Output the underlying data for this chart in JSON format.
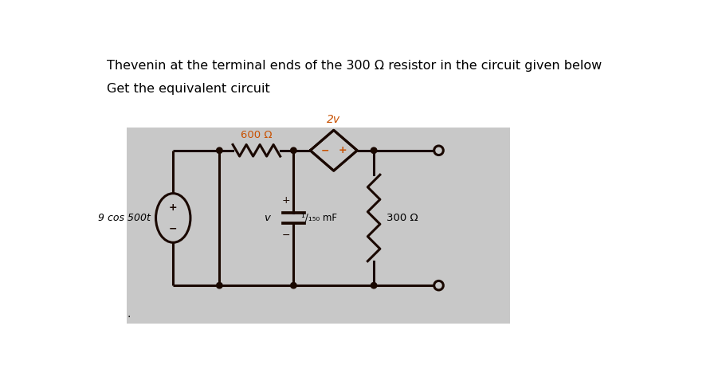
{
  "title_line1": "Thevenin at the terminal ends of the 300 Ω resistor in the circuit given below",
  "title_line2": "Get the equivalent circuit",
  "bg_color": "#c8c8c8",
  "page_bg": "#ffffff",
  "line_color": "#1a0800",
  "label_color": "#c85000",
  "text_color": "#000000",
  "source_label": "9 cos 500t",
  "resistor1_label": "600 Ω",
  "capacitor_label": "¹/₁₅₀ mF",
  "resistor2_label": "300 Ω",
  "vcvs_label": "2v",
  "v_label": "v"
}
